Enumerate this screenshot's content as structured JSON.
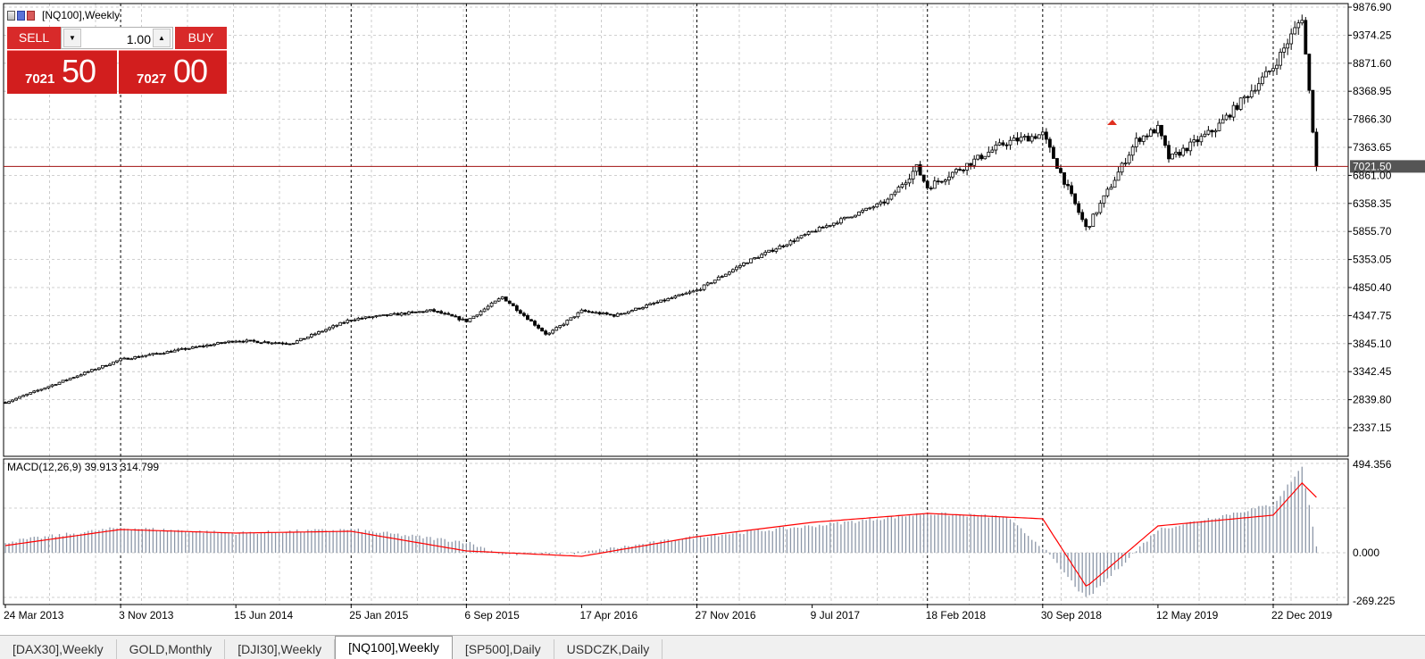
{
  "chart_title": "[NQ100],Weekly",
  "trade_panel": {
    "sell_label": "SELL",
    "buy_label": "BUY",
    "volume": "1.00",
    "sell_price_small": "7021",
    "sell_price_big": "50",
    "buy_price_small": "7027",
    "buy_price_big": "00"
  },
  "indicator_label": "MACD(12,26,9) 39.913 314.799",
  "tabs": [
    {
      "label": "[DAX30],Weekly",
      "active": false
    },
    {
      "label": "GOLD,Monthly",
      "active": false
    },
    {
      "label": "[DJI30],Weekly",
      "active": false
    },
    {
      "label": "[NQ100],Weekly",
      "active": true
    },
    {
      "label": "[SP500],Daily",
      "active": false
    },
    {
      "label": "USDCZK,Daily",
      "active": false
    }
  ],
  "colors": {
    "sell_buy": "#d21e1e",
    "price_line": "#a01010",
    "macd_histogram": "#8c97a8",
    "macd_signal": "#ff0000",
    "grid": "#c0c0c0"
  },
  "chart_data": [
    {
      "type": "candlestick",
      "timeframe": "Weekly",
      "y_tick_labels": [
        "9876.90",
        "9374.25",
        "8871.60",
        "8368.95",
        "7866.30",
        "7363.65",
        "6861.00",
        "6358.35",
        "5855.70",
        "5353.05",
        "4850.40",
        "4347.75",
        "3845.10",
        "3342.45",
        "2839.80",
        "2337.15"
      ],
      "ylim": [
        1900,
        9876.9
      ],
      "x_tick_labels": [
        "24 Mar 2013",
        "3 Nov 2013",
        "15 Jun 2014",
        "25 Jan 2015",
        "6 Sep 2015",
        "17 Apr 2016",
        "27 Nov 2016",
        "9 Jul 2017",
        "18 Feb 2018",
        "30 Sep 2018",
        "12 May 2019",
        "22 Dec 2019"
      ],
      "vertical_separator_dates": [
        "3 Nov 2013",
        "25 Jan 2015",
        "6 Sep 2015",
        "27 Nov 2016",
        "18 Feb 2018",
        "30 Sep 2018",
        "22 Dec 2019"
      ],
      "current_price_line": 7021.5,
      "current_price_label": "7021.50",
      "close_path": [
        [
          "24 Mar 2013",
          2790
        ],
        [
          "3 Nov 2013",
          3560
        ],
        [
          "15 Jun 2014",
          3900
        ],
        [
          "1 Oct 2014",
          3850
        ],
        [
          "25 Jan 2015",
          4280
        ],
        [
          "1 Jul 2015",
          4440
        ],
        [
          "6 Sep 2015",
          4250
        ],
        [
          "15 Nov 2015",
          4680
        ],
        [
          "10 Feb 2016",
          4000
        ],
        [
          "17 Apr 2016",
          4430
        ],
        [
          "20 Jun 2016",
          4350
        ],
        [
          "27 Nov 2016",
          4800
        ],
        [
          "1 Mar 2017",
          5300
        ],
        [
          "9 Jul 2017",
          5850
        ],
        [
          "1 Dec 2017",
          6400
        ],
        [
          "28 Jan 2018",
          7000
        ],
        [
          "18 Feb 2018",
          6650
        ],
        [
          "20 Jul 2018",
          7450
        ],
        [
          "30 Sep 2018",
          7600
        ],
        [
          "24 Dec 2018",
          5900
        ],
        [
          "1 Apr 2019",
          7500
        ],
        [
          "12 May 2019",
          7700
        ],
        [
          "3 Jun 2019",
          7150
        ],
        [
          "1 Sep 2019",
          7700
        ],
        [
          "22 Dec 2019",
          8800
        ],
        [
          "16 Feb 2020",
          9700
        ],
        [
          "15 Mar 2020",
          7021.5
        ]
      ]
    },
    {
      "type": "bar",
      "name": "MACD(12,26,9)",
      "main_value": 39.913,
      "signal_value": 314.799,
      "y_tick_labels": [
        "494.356",
        "0.000",
        "-269.225"
      ],
      "ylim": [
        -269.225,
        494.356
      ],
      "histogram_path": [
        [
          "24 Mar 2013",
          60
        ],
        [
          "3 Nov 2013",
          140
        ],
        [
          "15 Jun 2014",
          110
        ],
        [
          "25 Jan 2015",
          130
        ],
        [
          "6 Sep 2015",
          60
        ],
        [
          "15 Nov 2015",
          -10
        ],
        [
          "17 Apr 2016",
          0
        ],
        [
          "27 Nov 2016",
          90
        ],
        [
          "9 Jul 2017",
          150
        ],
        [
          "18 Feb 2018",
          220
        ],
        [
          "20 Jul 2018",
          200
        ],
        [
          "30 Sep 2018",
          30
        ],
        [
          "24 Dec 2018",
          -260
        ],
        [
          "12 May 2019",
          130
        ],
        [
          "22 Dec 2019",
          270
        ],
        [
          "16 Feb 2020",
          480
        ],
        [
          "15 Mar 2020",
          40
        ]
      ],
      "signal_path": [
        [
          "24 Mar 2013",
          40
        ],
        [
          "3 Nov 2013",
          130
        ],
        [
          "15 Jun 2014",
          110
        ],
        [
          "25 Jan 2015",
          120
        ],
        [
          "6 Sep 2015",
          10
        ],
        [
          "17 Apr 2016",
          -20
        ],
        [
          "27 Nov 2016",
          90
        ],
        [
          "9 Jul 2017",
          170
        ],
        [
          "18 Feb 2018",
          220
        ],
        [
          "30 Sep 2018",
          190
        ],
        [
          "24 Dec 2018",
          -190
        ],
        [
          "12 May 2019",
          150
        ],
        [
          "22 Dec 2019",
          210
        ],
        [
          "16 Feb 2020",
          390
        ],
        [
          "15 Mar 2020",
          310
        ]
      ]
    }
  ]
}
